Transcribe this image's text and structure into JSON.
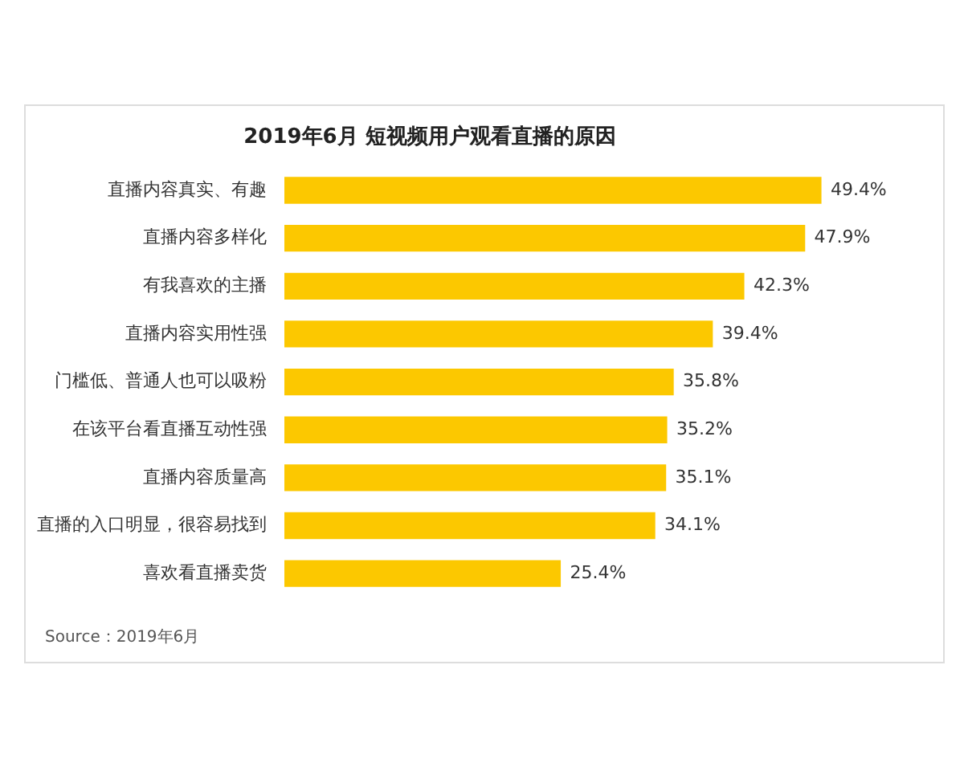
{
  "chart_data": {
    "type": "bar",
    "orientation": "horizontal",
    "relative": false,
    "title": "2019年6月 短视频用户观看直播的原因",
    "categories": [
      "直播内容真实、有趣",
      "直播内容多样化",
      "有我喜欢的主播",
      "直播内容实用性强",
      "门槛低、普通人也可以吸粉",
      "在该平台看直播互动性强",
      "直播内容质量高",
      "直播的入口明显，很容易找到",
      "喜欢看直播卖货"
    ],
    "values": [
      49.4,
      47.9,
      42.3,
      39.4,
      35.8,
      35.2,
      35.1,
      34.1,
      25.4
    ],
    "value_labels": [
      "49.4%",
      "47.9%",
      "42.3%",
      "39.4%",
      "35.8%",
      "35.2%",
      "35.1%",
      "34.1%",
      "25.4%"
    ],
    "color": "#fcc800",
    "grid": false,
    "legend": false,
    "annotations": [
      "Source：2019年6月"
    ]
  }
}
